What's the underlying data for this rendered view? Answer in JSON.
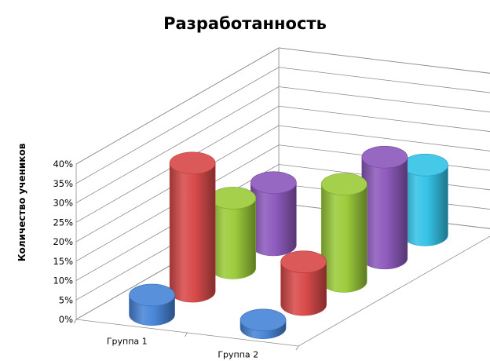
{
  "chart_data": {
    "type": "bar",
    "style": "3d-cylinder",
    "title": "Разработанность",
    "xlabel": "",
    "ylabel": "Количество учеников",
    "ylim": [
      0,
      40
    ],
    "yticks": [
      "0%",
      "5%",
      "10%",
      "15%",
      "20%",
      "25%",
      "30%",
      "35%",
      "40%"
    ],
    "categories": [
      "Группа 1",
      "Группа 2"
    ],
    "grid": true,
    "legend": "none",
    "series": [
      {
        "color": "#4a86d8",
        "values": [
          5,
          2
        ]
      },
      {
        "color": "#d94b4b",
        "values": [
          33,
          11
        ]
      },
      {
        "color": "#9ccc3c",
        "values": [
          18,
          25
        ]
      },
      {
        "color": "#8e5bbd",
        "values": [
          16,
          26
        ]
      },
      {
        "color": "#36c3e6",
        "values": [
          0,
          18
        ]
      }
    ]
  }
}
